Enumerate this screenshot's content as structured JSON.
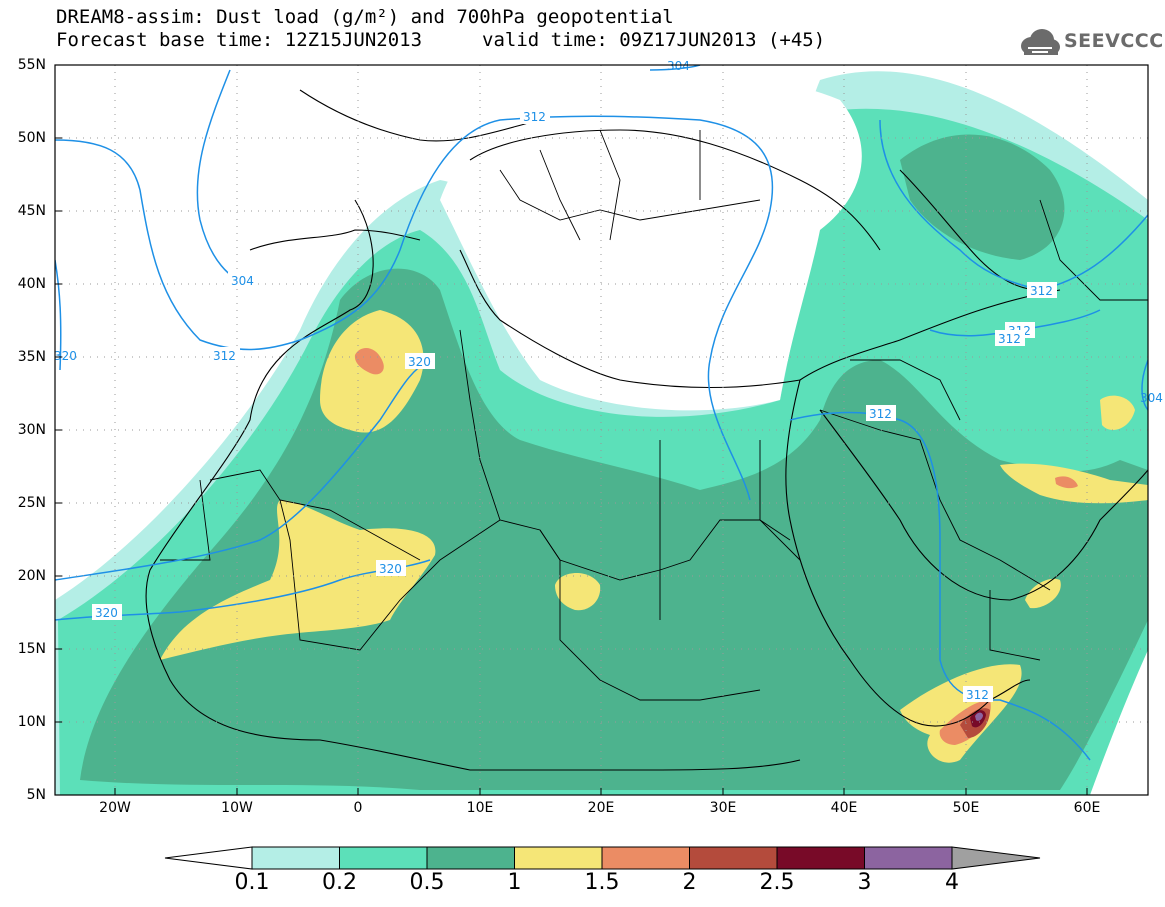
{
  "title": {
    "line1": "DREAM8-assim: Dust load (g/m²) and 700hPa geopotential",
    "line2": "Forecast base time: 12Z15JUN2013",
    "valid": "valid time: 09Z17JUN2013 (+45)"
  },
  "logo": {
    "text": "SEEVCCC",
    "icon": "cloud-logo-icon"
  },
  "axes": {
    "lat_labels": [
      "55N",
      "50N",
      "45N",
      "40N",
      "35N",
      "30N",
      "25N",
      "20N",
      "15N",
      "10N",
      "5N"
    ],
    "lon_labels": [
      "20W",
      "10W",
      "0",
      "10E",
      "20E",
      "30E",
      "40E",
      "50E",
      "60E"
    ]
  },
  "contours": {
    "labels": [
      "304",
      "312",
      "312",
      "320",
      "320",
      "320",
      "312",
      "312",
      "312",
      "312",
      "312",
      "304",
      "304",
      "320"
    ]
  },
  "colorbar": {
    "ticks": [
      "0.1",
      "0.2",
      "0.5",
      "1",
      "1.5",
      "2",
      "2.5",
      "3",
      "4"
    ],
    "colors": [
      "#b4eee6",
      "#5ce0b9",
      "#4db38e",
      "#f5e677",
      "#eb8c64",
      "#b44b3c",
      "#780a28",
      "#8c64a0",
      "#a0a0a0"
    ]
  },
  "colors": {
    "contour": "#1e90e6",
    "border": "#000000",
    "grid": "#9a9a9a"
  }
}
